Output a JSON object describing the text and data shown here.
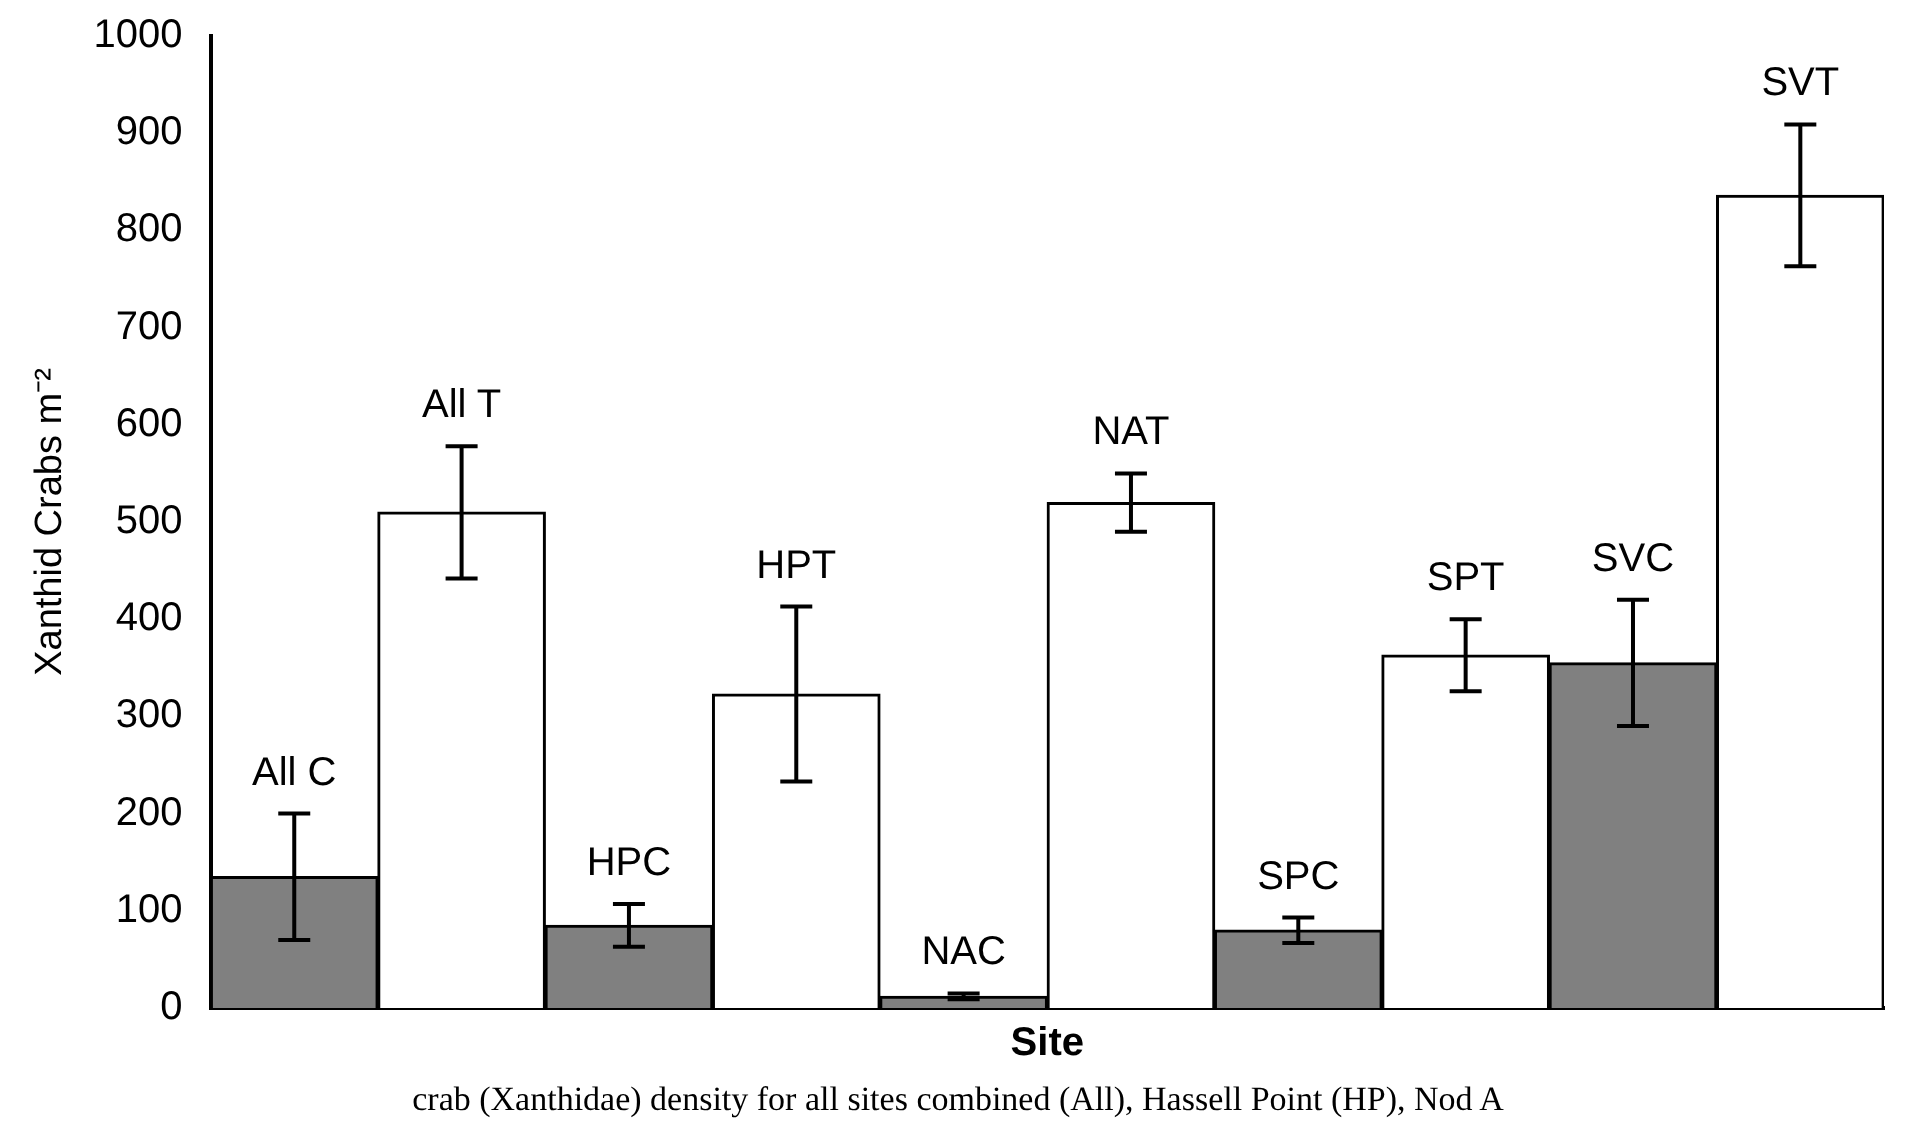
{
  "chart_data": {
    "type": "bar",
    "xlabel": "Site",
    "ylabel": "Xanthid Crabs m⁻²",
    "categories": [
      "All C",
      "All T",
      "HPC",
      "HPT",
      "NAC",
      "NAT",
      "SPC",
      "SPT",
      "SVC",
      "SVT"
    ],
    "values": [
      135,
      510,
      85,
      323,
      12,
      520,
      80,
      363,
      355,
      836
    ],
    "errors": [
      65,
      68,
      22,
      90,
      3,
      30,
      13,
      37,
      65,
      73
    ],
    "colors": [
      "#808080",
      "#ffffff",
      "#808080",
      "#ffffff",
      "#808080",
      "#ffffff",
      "#808080",
      "#ffffff",
      "#808080",
      "#ffffff"
    ],
    "ylim": [
      0,
      1000
    ],
    "yticks": [
      0,
      100,
      200,
      300,
      400,
      500,
      600,
      700,
      800,
      900,
      1000
    ],
    "grid": false,
    "legend": false,
    "tick_labels": "y",
    "annotations": [
      "crab (Xanthidae) density for all sites combined (All), Hassell Point (HP), Nod A"
    ]
  }
}
